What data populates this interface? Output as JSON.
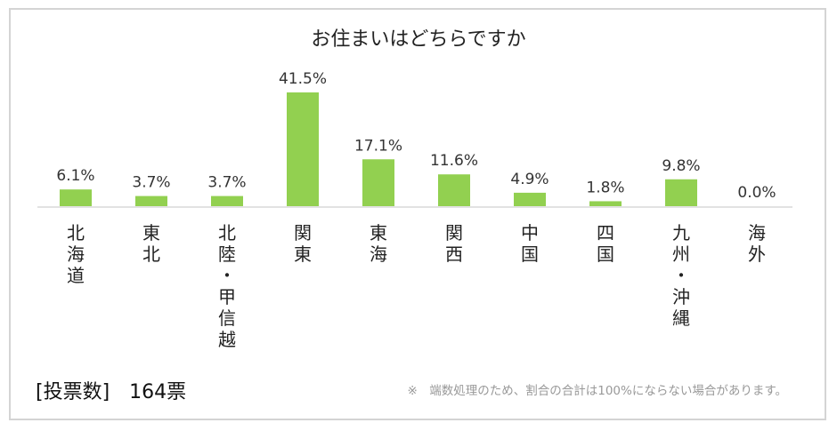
{
  "chart_data": {
    "type": "bar",
    "title": "お住まいはどちらですか",
    "categories": [
      "北海道",
      "東北",
      "北陸・甲信越",
      "関東",
      "東海",
      "関西",
      "中国",
      "四国",
      "九州・沖縄",
      "海外"
    ],
    "category_lines": [
      [
        "北",
        "海",
        "道"
      ],
      [
        "東",
        "北"
      ],
      [
        "北",
        "陸",
        "・",
        "甲",
        "信",
        "越"
      ],
      [
        "関",
        "東"
      ],
      [
        "東",
        "海"
      ],
      [
        "関",
        "西"
      ],
      [
        "中",
        "国"
      ],
      [
        "四",
        "国"
      ],
      [
        "九",
        "州",
        "・",
        "沖",
        "縄"
      ],
      [
        "海",
        "外"
      ]
    ],
    "values": [
      6.1,
      3.7,
      3.7,
      41.5,
      17.1,
      11.6,
      4.9,
      1.8,
      9.8,
      0.0
    ],
    "value_labels": [
      "6.1%",
      "3.7%",
      "3.7%",
      "41.5%",
      "17.1%",
      "11.6%",
      "4.9%",
      "1.8%",
      "9.8%",
      "0.0%"
    ],
    "bar_color": "#92d050",
    "xlabel": "",
    "ylabel": "",
    "ylim": [
      0,
      45
    ],
    "grid": false,
    "legend": "none"
  },
  "footer": {
    "votes_label": "[投票数]",
    "votes_count": "164票",
    "note": "※　端数処理のため、割合の合計は100%にならない場合があります。"
  }
}
